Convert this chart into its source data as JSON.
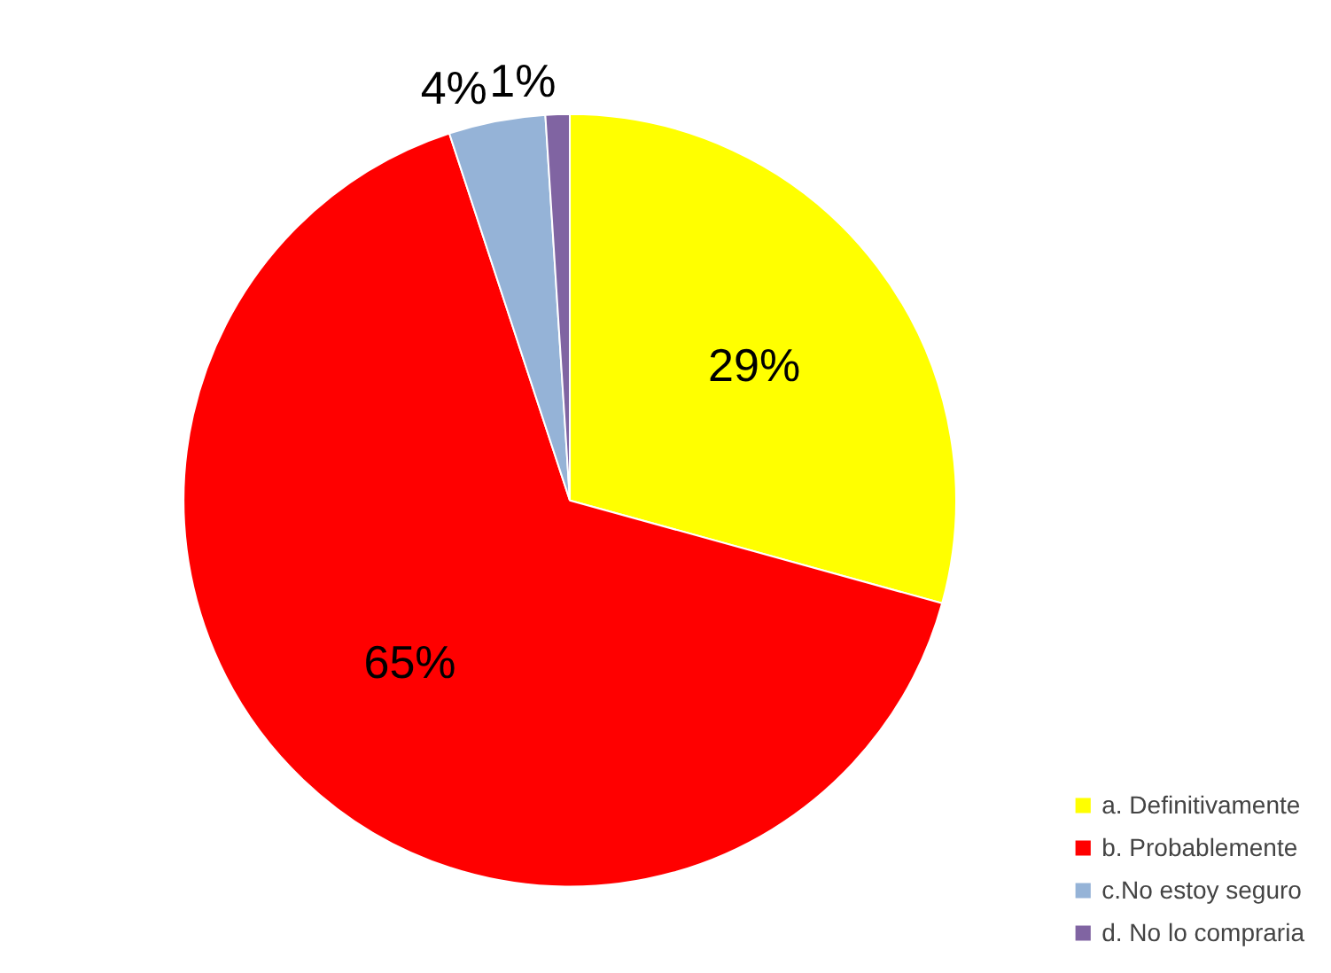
{
  "chart_data": {
    "type": "pie",
    "categories": [
      "a. Definitivamente",
      "b. Probablemente",
      "c.No estoy seguro",
      "d. No lo compraria"
    ],
    "values": [
      29,
      65,
      4,
      1
    ],
    "colors": [
      "#ffff00",
      "#ff0000",
      "#95b3d7",
      "#8064a2"
    ],
    "value_labels": [
      "29%",
      "65%",
      "4%",
      "1%"
    ],
    "legend": "bottom right"
  }
}
